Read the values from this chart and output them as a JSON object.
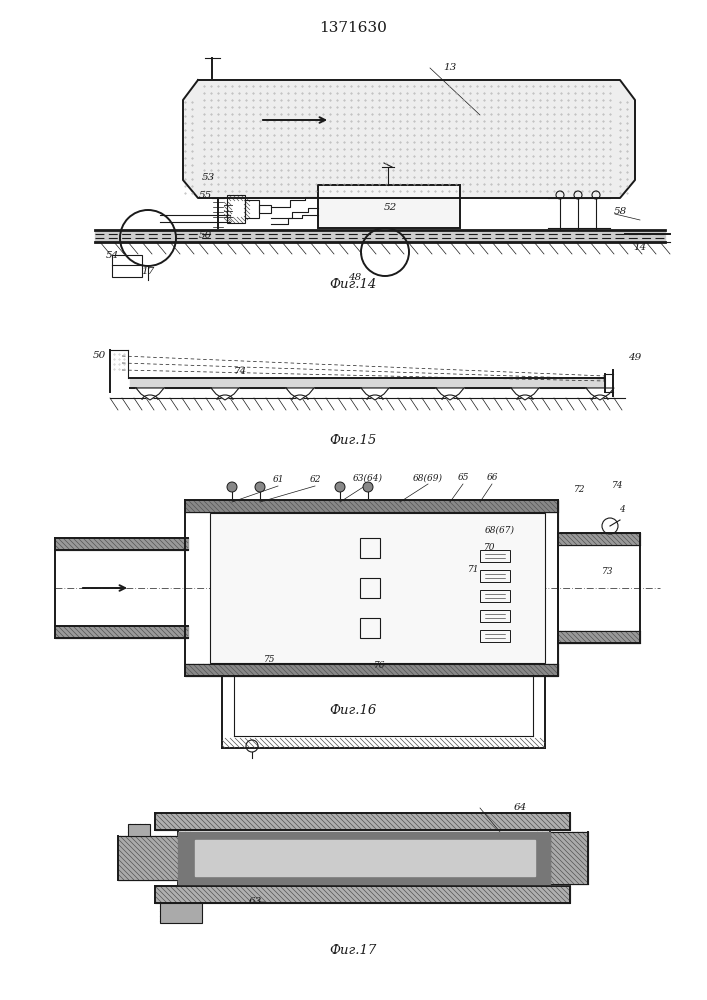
{
  "title": "1371630",
  "fig14_label": "Фиг.14",
  "fig15_label": "Фиг.15",
  "fig16_label": "Фиг.16",
  "fig17_label": "Фиг.17",
  "bg_color": "#ffffff",
  "line_color": "#1a1a1a",
  "gray_hatch": "#666666",
  "light_gray": "#e8e8e8",
  "dot_color": "#999999"
}
